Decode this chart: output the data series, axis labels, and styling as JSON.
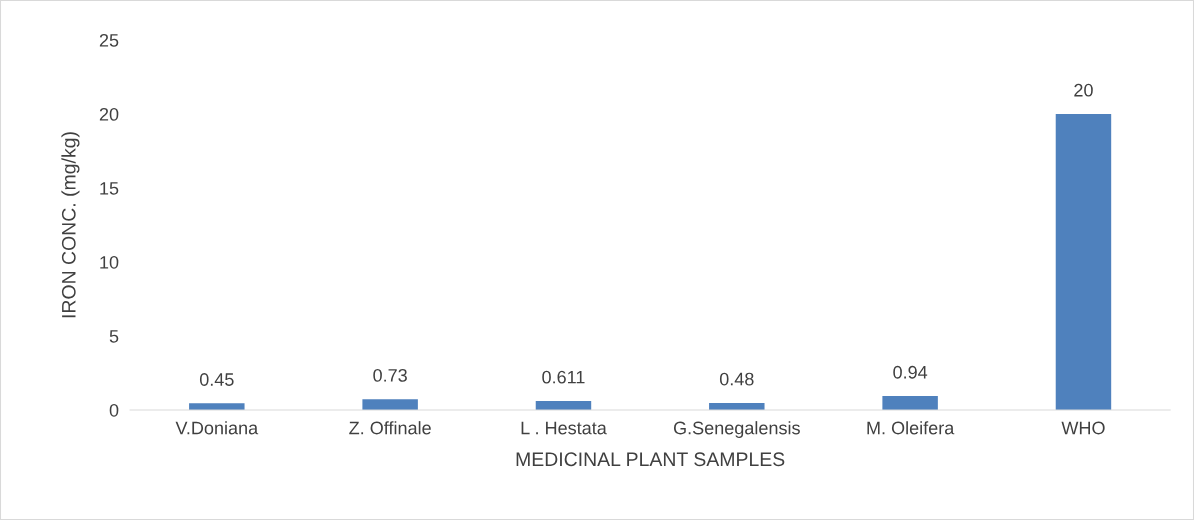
{
  "chart_data": {
    "type": "bar",
    "xlabel": "MEDICINAL PLANT SAMPLES",
    "ylabel": "IRON CONC. (mg/kg)",
    "categories": [
      "V.Doniana",
      "Z. Offinale",
      "L . Hestata",
      "G.Senegalensis",
      "M. Oleifera",
      "WHO"
    ],
    "values": [
      0.45,
      0.73,
      0.611,
      0.48,
      0.94,
      20
    ],
    "color": "#4f81bd",
    "ylim": [
      0,
      25
    ],
    "yticks": [
      0,
      5,
      10,
      15,
      20,
      25
    ],
    "grid": false,
    "data_labels": true,
    "legend": false
  }
}
